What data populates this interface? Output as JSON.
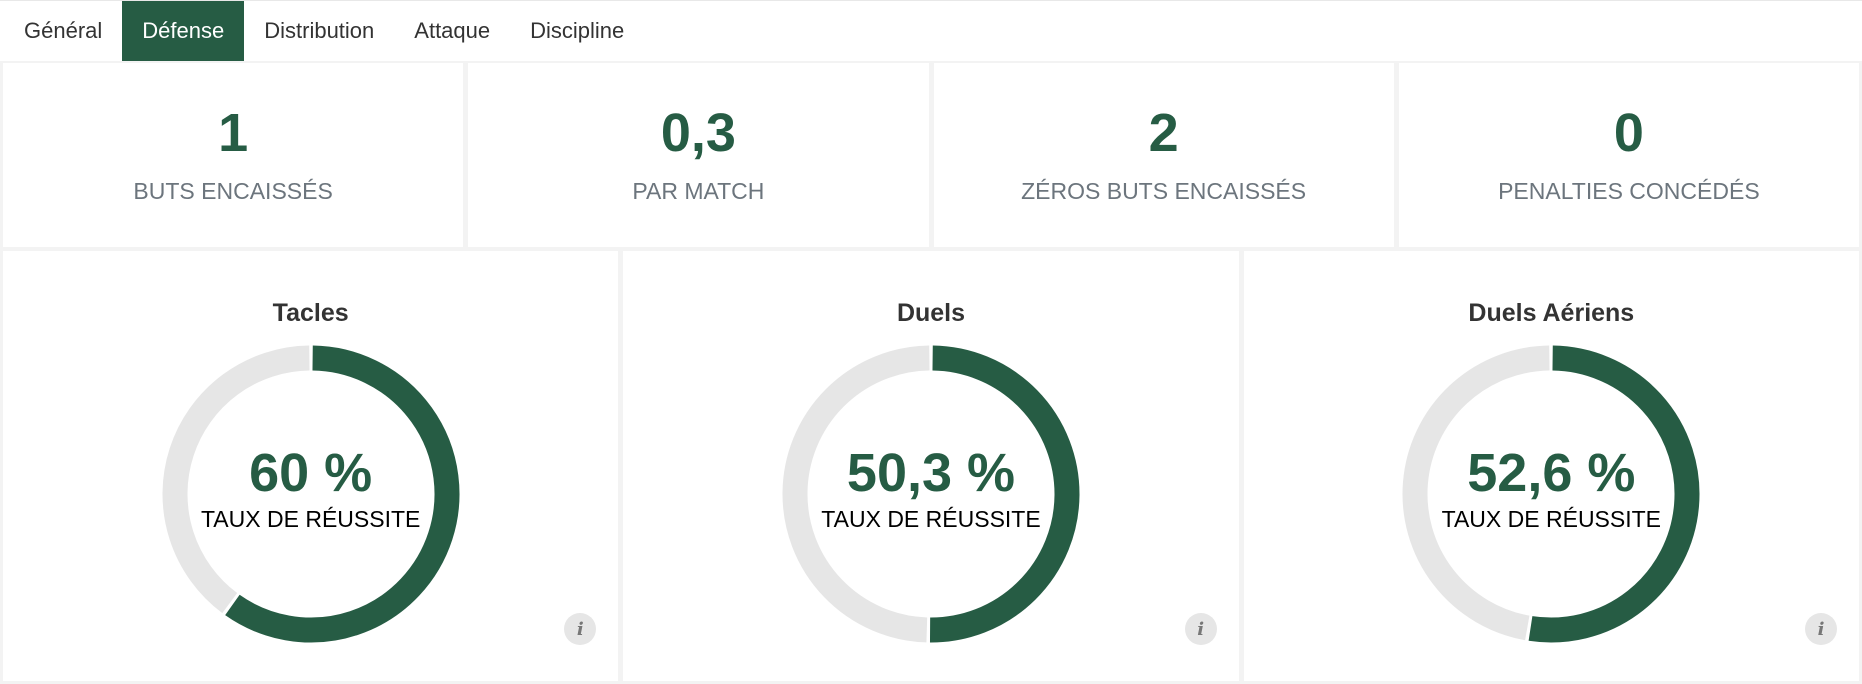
{
  "tabs": [
    {
      "label": "Général"
    },
    {
      "label": "Défense",
      "active": true
    },
    {
      "label": "Distribution"
    },
    {
      "label": "Attaque"
    },
    {
      "label": "Discipline"
    }
  ],
  "stats": [
    {
      "value": "1",
      "label": "BUTS ENCAISSÉS"
    },
    {
      "value": "0,3",
      "label": "PAR MATCH"
    },
    {
      "value": "2",
      "label": "ZÉROS BUTS ENCAISSÉS"
    },
    {
      "value": "0",
      "label": "PENALTIES CONCÉDÉS"
    }
  ],
  "donuts": [
    {
      "title": "Tacles",
      "percent": 60,
      "value_text": "60 %",
      "sublabel": "TAUX DE RÉUSSITE"
    },
    {
      "title": "Duels",
      "percent": 50.3,
      "value_text": "50,3 %",
      "sublabel": "TAUX DE RÉUSSITE"
    },
    {
      "title": "Duels Aériens",
      "percent": 52.6,
      "value_text": "52,6 %",
      "sublabel": "TAUX DE RÉUSSITE"
    }
  ],
  "info_icon": "info-icon",
  "colors": {
    "accent": "#265c44",
    "track": "#e6e6e6"
  }
}
